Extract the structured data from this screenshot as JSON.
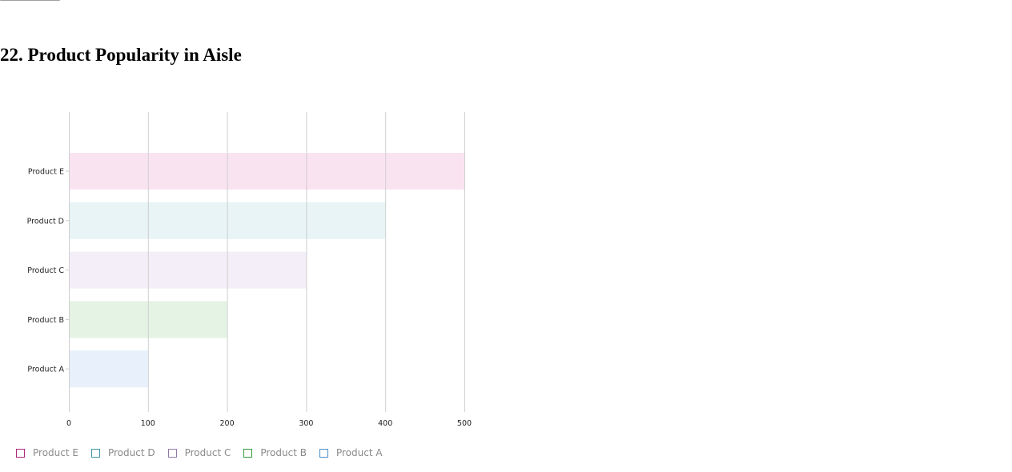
{
  "page": {
    "title": "22. Product Popularity in Aisle"
  },
  "chart_data": {
    "type": "bar",
    "orientation": "horizontal",
    "title": "",
    "xlabel": "",
    "ylabel": "",
    "xlim": [
      0,
      500
    ],
    "xticks": [
      0,
      100,
      200,
      300,
      400,
      500
    ],
    "grid": true,
    "legend_position": "bottom-left",
    "categories": [
      "Product E",
      "Product D",
      "Product C",
      "Product B",
      "Product A"
    ],
    "values": [
      500,
      400,
      300,
      200,
      100
    ],
    "fill_colors": [
      "#fae3f1",
      "#e8f4f6",
      "#f3eef7",
      "#e5f3e5",
      "#e8f1fb"
    ],
    "legend": [
      {
        "label": "Product E",
        "color": "#b2247e"
      },
      {
        "label": "Product D",
        "color": "#3d97a6"
      },
      {
        "label": "Product C",
        "color": "#8e7aa8"
      },
      {
        "label": "Product B",
        "color": "#2e9a3a"
      },
      {
        "label": "Product A",
        "color": "#4a8fc7"
      }
    ]
  }
}
